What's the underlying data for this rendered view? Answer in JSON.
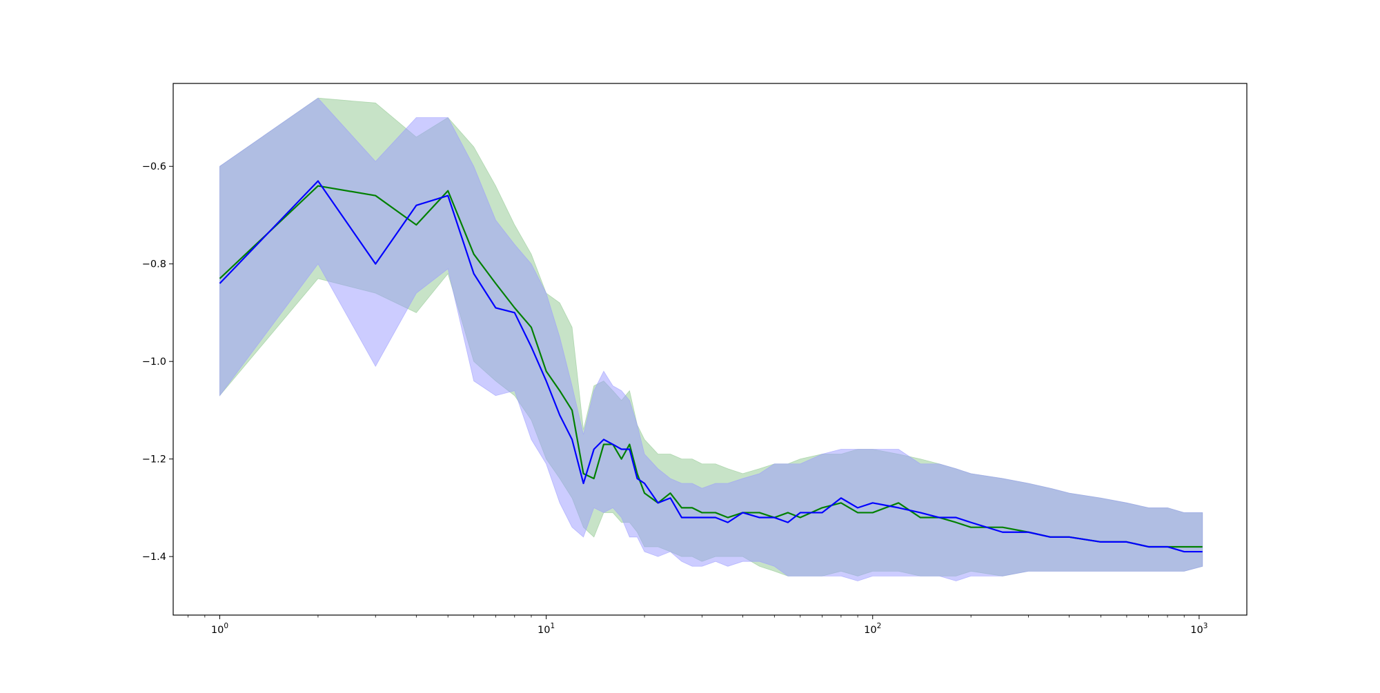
{
  "chart_data": {
    "type": "line",
    "title": "",
    "xlabel": "",
    "ylabel": "",
    "xscale": "log",
    "xlim": [
      0.72,
      1400
    ],
    "ylim": [
      -1.52,
      -0.43
    ],
    "grid": false,
    "legend": "none",
    "x_ticks": [
      {
        "base": "10",
        "exp": "0",
        "value": 1
      },
      {
        "base": "10",
        "exp": "1",
        "value": 10
      },
      {
        "base": "10",
        "exp": "2",
        "value": 100
      },
      {
        "base": "10",
        "exp": "3",
        "value": 1000
      }
    ],
    "y_ticks": [
      {
        "label": "−0.6",
        "value": -0.6
      },
      {
        "label": "−0.8",
        "value": -0.8
      },
      {
        "label": "−1.0",
        "value": -1.0
      },
      {
        "label": "−1.2",
        "value": -1.2
      },
      {
        "label": "−1.4",
        "value": -1.4
      }
    ],
    "x": [
      1,
      2,
      3,
      4,
      5,
      6,
      7,
      8,
      9,
      10,
      11,
      12,
      13,
      14,
      15,
      16,
      17,
      18,
      19,
      20,
      22,
      24,
      26,
      28,
      30,
      33,
      36,
      40,
      45,
      50,
      55,
      60,
      70,
      80,
      90,
      100,
      120,
      140,
      160,
      180,
      200,
      250,
      300,
      350,
      400,
      500,
      600,
      700,
      800,
      900,
      1024
    ],
    "series": [
      {
        "color": "#008000",
        "band_color": "#90c890",
        "mean": [
          -0.83,
          -0.64,
          -0.66,
          -0.72,
          -0.65,
          -0.78,
          -0.84,
          -0.89,
          -0.93,
          -1.02,
          -1.06,
          -1.1,
          -1.23,
          -1.24,
          -1.17,
          -1.17,
          -1.2,
          -1.17,
          -1.23,
          -1.27,
          -1.29,
          -1.27,
          -1.3,
          -1.3,
          -1.31,
          -1.31,
          -1.32,
          -1.31,
          -1.31,
          -1.32,
          -1.31,
          -1.32,
          -1.3,
          -1.29,
          -1.31,
          -1.31,
          -1.29,
          -1.32,
          -1.32,
          -1.33,
          -1.34,
          -1.34,
          -1.35,
          -1.36,
          -1.36,
          -1.37,
          -1.37,
          -1.38,
          -1.38,
          -1.38,
          -1.38
        ],
        "upper": [
          -0.6,
          -0.46,
          -0.47,
          -0.54,
          -0.5,
          -0.56,
          -0.64,
          -0.72,
          -0.78,
          -0.86,
          -0.88,
          -0.93,
          -1.14,
          -1.05,
          -1.04,
          -1.06,
          -1.08,
          -1.06,
          -1.13,
          -1.16,
          -1.19,
          -1.19,
          -1.2,
          -1.2,
          -1.21,
          -1.21,
          -1.22,
          -1.23,
          -1.22,
          -1.21,
          -1.21,
          -1.2,
          -1.19,
          -1.19,
          -1.18,
          -1.18,
          -1.19,
          -1.2,
          -1.21,
          -1.22,
          -1.23,
          -1.24,
          -1.25,
          -1.26,
          -1.27,
          -1.28,
          -1.29,
          -1.3,
          -1.3,
          -1.31,
          -1.31
        ],
        "lower": [
          -1.07,
          -0.83,
          -0.86,
          -0.9,
          -0.82,
          -1.0,
          -1.04,
          -1.07,
          -1.12,
          -1.2,
          -1.24,
          -1.28,
          -1.34,
          -1.36,
          -1.31,
          -1.31,
          -1.33,
          -1.33,
          -1.35,
          -1.38,
          -1.38,
          -1.39,
          -1.4,
          -1.4,
          -1.41,
          -1.4,
          -1.4,
          -1.4,
          -1.42,
          -1.43,
          -1.44,
          -1.44,
          -1.44,
          -1.43,
          -1.44,
          -1.43,
          -1.43,
          -1.44,
          -1.44,
          -1.44,
          -1.43,
          -1.44,
          -1.43,
          -1.43,
          -1.43,
          -1.43,
          -1.43,
          -1.43,
          -1.43,
          -1.43,
          -1.42
        ]
      },
      {
        "color": "#0000ff",
        "band_color": "#9999ff",
        "mean": [
          -0.84,
          -0.63,
          -0.8,
          -0.68,
          -0.66,
          -0.82,
          -0.89,
          -0.9,
          -0.97,
          -1.04,
          -1.11,
          -1.16,
          -1.25,
          -1.18,
          -1.16,
          -1.17,
          -1.18,
          -1.18,
          -1.24,
          -1.25,
          -1.29,
          -1.28,
          -1.32,
          -1.32,
          -1.32,
          -1.32,
          -1.33,
          -1.31,
          -1.32,
          -1.32,
          -1.33,
          -1.31,
          -1.31,
          -1.28,
          -1.3,
          -1.29,
          -1.3,
          -1.31,
          -1.32,
          -1.32,
          -1.33,
          -1.35,
          -1.35,
          -1.36,
          -1.36,
          -1.37,
          -1.37,
          -1.38,
          -1.38,
          -1.39,
          -1.39
        ],
        "upper": [
          -0.6,
          -0.46,
          -0.59,
          -0.5,
          -0.5,
          -0.6,
          -0.71,
          -0.76,
          -0.8,
          -0.86,
          -0.95,
          -1.05,
          -1.15,
          -1.06,
          -1.02,
          -1.05,
          -1.06,
          -1.08,
          -1.13,
          -1.19,
          -1.22,
          -1.24,
          -1.25,
          -1.25,
          -1.26,
          -1.25,
          -1.25,
          -1.24,
          -1.23,
          -1.21,
          -1.21,
          -1.21,
          -1.19,
          -1.18,
          -1.18,
          -1.18,
          -1.18,
          -1.21,
          -1.21,
          -1.22,
          -1.23,
          -1.24,
          -1.25,
          -1.26,
          -1.27,
          -1.28,
          -1.29,
          -1.3,
          -1.3,
          -1.31,
          -1.31
        ],
        "lower": [
          -1.07,
          -0.8,
          -1.01,
          -0.86,
          -0.81,
          -1.04,
          -1.07,
          -1.06,
          -1.16,
          -1.21,
          -1.29,
          -1.34,
          -1.36,
          -1.3,
          -1.31,
          -1.3,
          -1.32,
          -1.36,
          -1.36,
          -1.39,
          -1.4,
          -1.39,
          -1.41,
          -1.42,
          -1.42,
          -1.41,
          -1.42,
          -1.41,
          -1.41,
          -1.42,
          -1.44,
          -1.44,
          -1.44,
          -1.44,
          -1.45,
          -1.44,
          -1.44,
          -1.44,
          -1.44,
          -1.45,
          -1.44,
          -1.44,
          -1.43,
          -1.43,
          -1.43,
          -1.43,
          -1.43,
          -1.43,
          -1.43,
          -1.43,
          -1.42
        ]
      }
    ]
  }
}
